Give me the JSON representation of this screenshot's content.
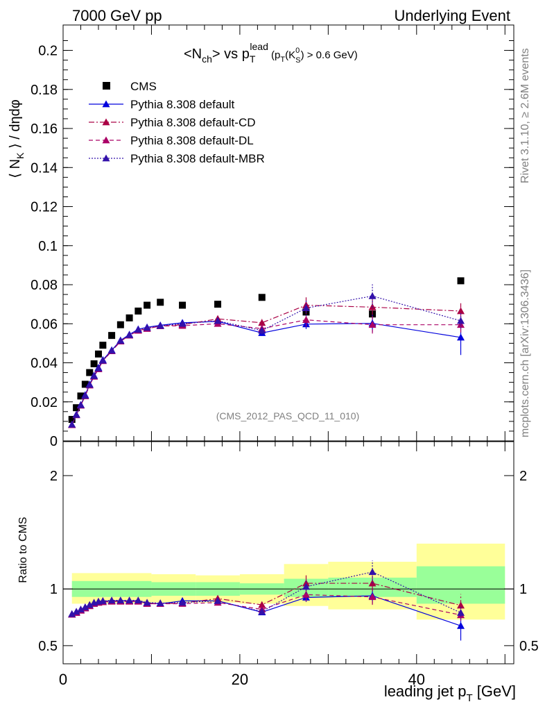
{
  "header": {
    "left": "7000 GeV pp",
    "right": "Underlying Event"
  },
  "title": {
    "prefix": "<N",
    "sub1": "ch",
    "mid": "> vs p",
    "sub2": "T",
    "sup2": "lead",
    "cut_a": " (p",
    "cut_sub": "T",
    "cut_b": "(K",
    "cut_sup": "0",
    "cut_sub2": "S",
    "cut_c": ") > 0.6 GeV)"
  },
  "side_labels": {
    "rivet": "Rivet 3.1.10, ≥ 2.6M events",
    "mcplots": "mcplots.cern.ch [arXiv:1306.3436]"
  },
  "watermark": "(CMS_2012_PAS_QCD_11_010)",
  "ylabel_main": "⟨ N_K ⟩ / dηdφ",
  "ylabel_main_parts": {
    "a": "⟨ N",
    "sub": "K",
    "b": " ⟩ / dηdφ"
  },
  "ylabel_ratio": "Ratio to CMS",
  "xlabel": {
    "a": "leading jet p",
    "sub": "T",
    "b": " [GeV]"
  },
  "legend": [
    {
      "label": "CMS",
      "style": "data",
      "color": "#000000"
    },
    {
      "label": "Pythia 8.308 default",
      "style": "solid",
      "color": "#0000dd"
    },
    {
      "label": "Pythia 8.308 default-CD",
      "style": "dashdot",
      "color": "#aa0044"
    },
    {
      "label": "Pythia 8.308 default-DL",
      "style": "dashed",
      "color": "#aa0066"
    },
    {
      "label": "Pythia 8.308 default-MBR",
      "style": "dotted",
      "color": "#3311aa"
    }
  ],
  "chart_data": {
    "type": "scatter",
    "xlim": [
      0,
      51
    ],
    "main": {
      "ylim": [
        0,
        0.213
      ],
      "yticks": [
        0,
        0.02,
        0.04,
        0.06,
        0.08,
        0.1,
        0.12,
        0.14,
        0.16,
        0.18,
        0.2
      ],
      "yticklabels": [
        "0",
        "0.02",
        "0.04",
        "0.06",
        "0.08",
        "0.1",
        "0.12",
        "0.14",
        "0.16",
        "0.18",
        "0.2"
      ],
      "series": [
        {
          "name": "CMS",
          "x": [
            1.0,
            1.5,
            2.0,
            2.5,
            3.0,
            3.5,
            4.0,
            4.5,
            5.5,
            6.5,
            7.5,
            8.5,
            9.5,
            11.0,
            13.5,
            17.5,
            22.5,
            27.5,
            35.0,
            45.0
          ],
          "y": [
            0.011,
            0.017,
            0.023,
            0.029,
            0.035,
            0.0395,
            0.0445,
            0.049,
            0.054,
            0.0595,
            0.063,
            0.0665,
            0.0695,
            0.071,
            0.0695,
            0.07,
            0.0735,
            0.066,
            0.065,
            0.082
          ]
        },
        {
          "name": "Pythia 8.308 default",
          "x": [
            1.0,
            1.5,
            2.0,
            2.5,
            3.0,
            3.5,
            4.0,
            4.5,
            5.5,
            6.5,
            7.5,
            8.5,
            9.5,
            11.0,
            13.5,
            17.5,
            22.5,
            27.5,
            35.0,
            45.0
          ],
          "y": [
            0.0083,
            0.0135,
            0.0185,
            0.0235,
            0.029,
            0.0335,
            0.0375,
            0.0415,
            0.0465,
            0.0515,
            0.0545,
            0.0572,
            0.0582,
            0.0592,
            0.0605,
            0.0612,
            0.0553,
            0.0598,
            0.0602,
            0.053
          ],
          "err": [
            0,
            0,
            0,
            0,
            0,
            0,
            0,
            0,
            0,
            0,
            0,
            0,
            0,
            0,
            0,
            0,
            0.0015,
            0.0025,
            0.0045,
            0.009
          ]
        },
        {
          "name": "Pythia 8.308 default-CD",
          "x": [
            1.0,
            1.5,
            2.0,
            2.5,
            3.0,
            3.5,
            4.0,
            4.5,
            5.5,
            6.5,
            7.5,
            8.5,
            9.5,
            11.0,
            13.5,
            17.5,
            22.5,
            27.5,
            35.0,
            45.0
          ],
          "y": [
            0.0082,
            0.0133,
            0.0182,
            0.023,
            0.0285,
            0.033,
            0.0368,
            0.041,
            0.046,
            0.051,
            0.054,
            0.0565,
            0.0575,
            0.0588,
            0.0595,
            0.0625,
            0.0605,
            0.0695,
            0.0685,
            0.0665
          ],
          "err": [
            0,
            0,
            0,
            0,
            0,
            0,
            0,
            0,
            0,
            0,
            0,
            0,
            0,
            0,
            0,
            0,
            0.002,
            0.0045,
            0.004,
            0.004
          ]
        },
        {
          "name": "Pythia 8.308 default-DL",
          "x": [
            1.0,
            1.5,
            2.0,
            2.5,
            3.0,
            3.5,
            4.0,
            4.5,
            5.5,
            6.5,
            7.5,
            8.5,
            9.5,
            11.0,
            13.5,
            17.5,
            22.5,
            27.5,
            35.0,
            45.0
          ],
          "y": [
            0.0082,
            0.0132,
            0.0182,
            0.023,
            0.0285,
            0.033,
            0.0368,
            0.041,
            0.046,
            0.051,
            0.054,
            0.0565,
            0.0575,
            0.0588,
            0.059,
            0.06,
            0.0575,
            0.062,
            0.0595,
            0.0595
          ],
          "err": [
            0,
            0,
            0,
            0,
            0,
            0,
            0,
            0,
            0,
            0,
            0,
            0,
            0,
            0,
            0,
            0,
            0.002,
            0.0035,
            0.0045,
            0.004
          ]
        },
        {
          "name": "Pythia 8.308 default-MBR",
          "x": [
            1.0,
            1.5,
            2.0,
            2.5,
            3.0,
            3.5,
            4.0,
            4.5,
            5.5,
            6.5,
            7.5,
            8.5,
            9.5,
            11.0,
            13.5,
            17.5,
            22.5,
            27.5,
            35.0,
            45.0
          ],
          "y": [
            0.0084,
            0.0134,
            0.0184,
            0.0232,
            0.0288,
            0.0333,
            0.0372,
            0.0412,
            0.0463,
            0.0513,
            0.0543,
            0.057,
            0.058,
            0.059,
            0.06,
            0.0615,
            0.0565,
            0.068,
            0.0742,
            0.0615
          ],
          "err": [
            0,
            0,
            0,
            0,
            0,
            0,
            0,
            0,
            0,
            0,
            0,
            0,
            0,
            0,
            0,
            0,
            0.002,
            0.004,
            0.006,
            0.004
          ]
        }
      ]
    },
    "ratio": {
      "ylim": [
        0.34,
        2.3
      ],
      "yticks": [
        0.5,
        1,
        2
      ],
      "yticklabels": [
        "0.5",
        "1",
        "2"
      ],
      "bands": [
        {
          "x0": 1,
          "x1": 10,
          "green": [
            0.93,
            1.07
          ],
          "yellow": [
            0.87,
            1.14
          ]
        },
        {
          "x0": 10,
          "x1": 15,
          "green": [
            0.94,
            1.06
          ],
          "yellow": [
            0.88,
            1.13
          ]
        },
        {
          "x0": 15,
          "x1": 20,
          "green": [
            0.94,
            1.06
          ],
          "yellow": [
            0.88,
            1.12
          ]
        },
        {
          "x0": 20,
          "x1": 25,
          "green": [
            0.95,
            1.05
          ],
          "yellow": [
            0.87,
            1.13
          ]
        },
        {
          "x0": 25,
          "x1": 30,
          "green": [
            0.93,
            1.09
          ],
          "yellow": [
            0.85,
            1.22
          ]
        },
        {
          "x0": 30,
          "x1": 40,
          "green": [
            0.93,
            1.1
          ],
          "yellow": [
            0.82,
            1.24
          ]
        },
        {
          "x0": 40,
          "x1": 50,
          "green": [
            0.87,
            1.2
          ],
          "yellow": [
            0.73,
            1.4
          ]
        }
      ],
      "series": [
        {
          "name": "Pythia 8.308 default",
          "y": [
            0.775,
            0.795,
            0.815,
            0.835,
            0.855,
            0.875,
            0.885,
            0.89,
            0.895,
            0.895,
            0.895,
            0.895,
            0.875,
            0.87,
            0.895,
            0.895,
            0.795,
            0.925,
            0.94,
            0.675
          ],
          "err": [
            0,
            0,
            0,
            0,
            0,
            0,
            0,
            0,
            0,
            0,
            0,
            0,
            0,
            0,
            0,
            0,
            0.02,
            0.04,
            0.07,
            0.13
          ]
        },
        {
          "name": "Pythia 8.308 default-CD",
          "y": [
            0.775,
            0.79,
            0.81,
            0.83,
            0.85,
            0.87,
            0.88,
            0.885,
            0.89,
            0.89,
            0.89,
            0.89,
            0.87,
            0.87,
            0.875,
            0.915,
            0.86,
            1.05,
            1.05,
            0.855
          ],
          "err": [
            0,
            0,
            0,
            0,
            0,
            0,
            0,
            0,
            0,
            0,
            0,
            0,
            0,
            0,
            0,
            0,
            0.03,
            0.07,
            0.07,
            0.1
          ]
        },
        {
          "name": "Pythia 8.308 default-DL",
          "y": [
            0.775,
            0.79,
            0.81,
            0.83,
            0.85,
            0.87,
            0.88,
            0.885,
            0.89,
            0.89,
            0.89,
            0.89,
            0.87,
            0.87,
            0.87,
            0.88,
            0.82,
            0.95,
            0.93,
            0.77
          ],
          "err": [
            0,
            0,
            0,
            0,
            0,
            0,
            0,
            0,
            0,
            0,
            0,
            0,
            0,
            0,
            0,
            0,
            0.03,
            0.06,
            0.07,
            0.05
          ]
        },
        {
          "name": "Pythia 8.308 default-MBR",
          "y": [
            0.78,
            0.8,
            0.82,
            0.84,
            0.86,
            0.88,
            0.89,
            0.895,
            0.9,
            0.9,
            0.9,
            0.9,
            0.88,
            0.875,
            0.88,
            0.895,
            0.8,
            1.02,
            1.15,
            0.79
          ],
          "err": [
            0,
            0,
            0,
            0,
            0,
            0,
            0,
            0,
            0,
            0,
            0,
            0,
            0,
            0,
            0,
            0,
            0.03,
            0.06,
            0.1,
            0.06
          ]
        }
      ]
    },
    "xticks": [
      0,
      20,
      40
    ],
    "xticklabels": [
      "0",
      "20",
      "40"
    ]
  }
}
